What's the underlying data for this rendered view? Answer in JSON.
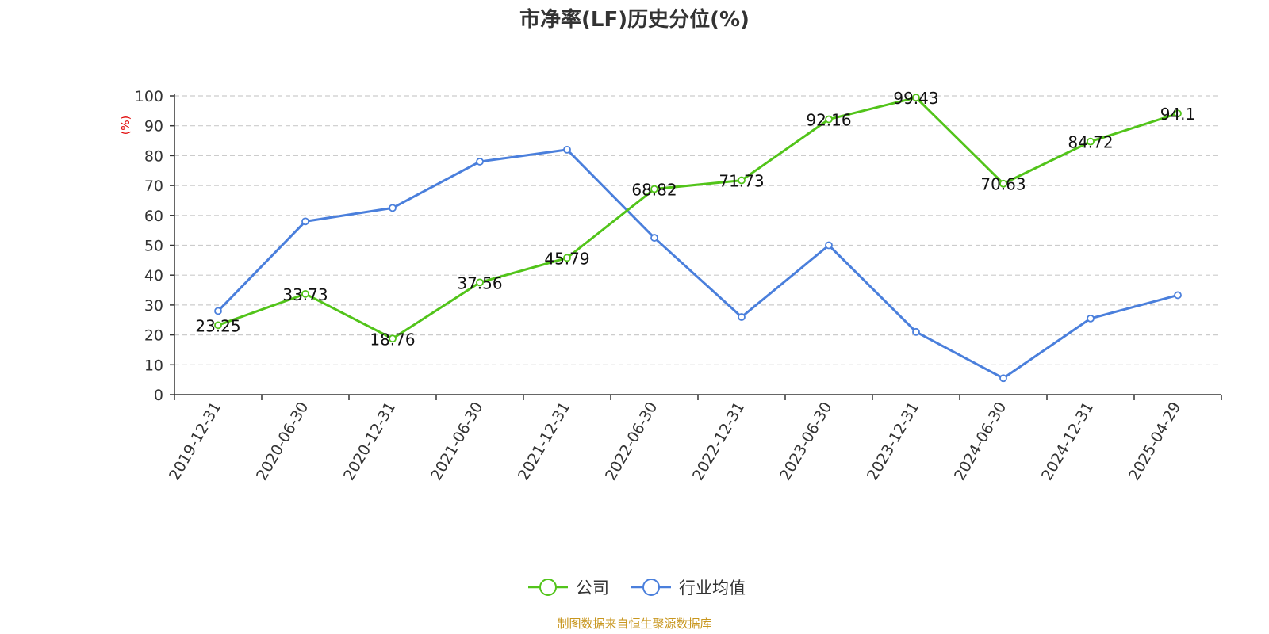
{
  "colors": {
    "company": "#52c41a",
    "industry": "#4a7fdc",
    "ylabel": "#e00000",
    "source": "#c8961e",
    "grid": "#cccccc",
    "axis": "#333333"
  },
  "source_text": "制图数据来自恒生聚源数据库",
  "chart_data": {
    "type": "line",
    "title": "市净率(LF)历史分位(%)",
    "ylabel": "(%)",
    "xlabel": "",
    "ylim": [
      0,
      100
    ],
    "yticks": [
      0,
      10,
      20,
      30,
      40,
      50,
      60,
      70,
      80,
      90,
      100
    ],
    "grid": true,
    "legend_position": "bottom-center",
    "categories": [
      "2019-12-31",
      "2020-06-30",
      "2020-12-31",
      "2021-06-30",
      "2021-12-31",
      "2022-06-30",
      "2022-12-31",
      "2023-06-30",
      "2023-12-31",
      "2024-06-30",
      "2024-12-31",
      "2025-04-29"
    ],
    "series": [
      {
        "name": "公司",
        "color": "#52c41a",
        "values": [
          23.25,
          33.73,
          18.76,
          37.56,
          45.79,
          68.82,
          71.73,
          92.16,
          99.43,
          70.63,
          84.72,
          94.1
        ],
        "data_labels": [
          "23.25",
          "33.73",
          "18.76",
          "37.56",
          "45.79",
          "68.82",
          "71.73",
          "92.16",
          "99.43",
          "70.63",
          "84.72",
          "94.1"
        ]
      },
      {
        "name": "行业均值",
        "color": "#4a7fdc",
        "values": [
          28,
          58,
          62.5,
          78,
          82,
          52.5,
          26,
          50,
          21,
          5.5,
          25.5,
          33.3
        ]
      }
    ]
  }
}
